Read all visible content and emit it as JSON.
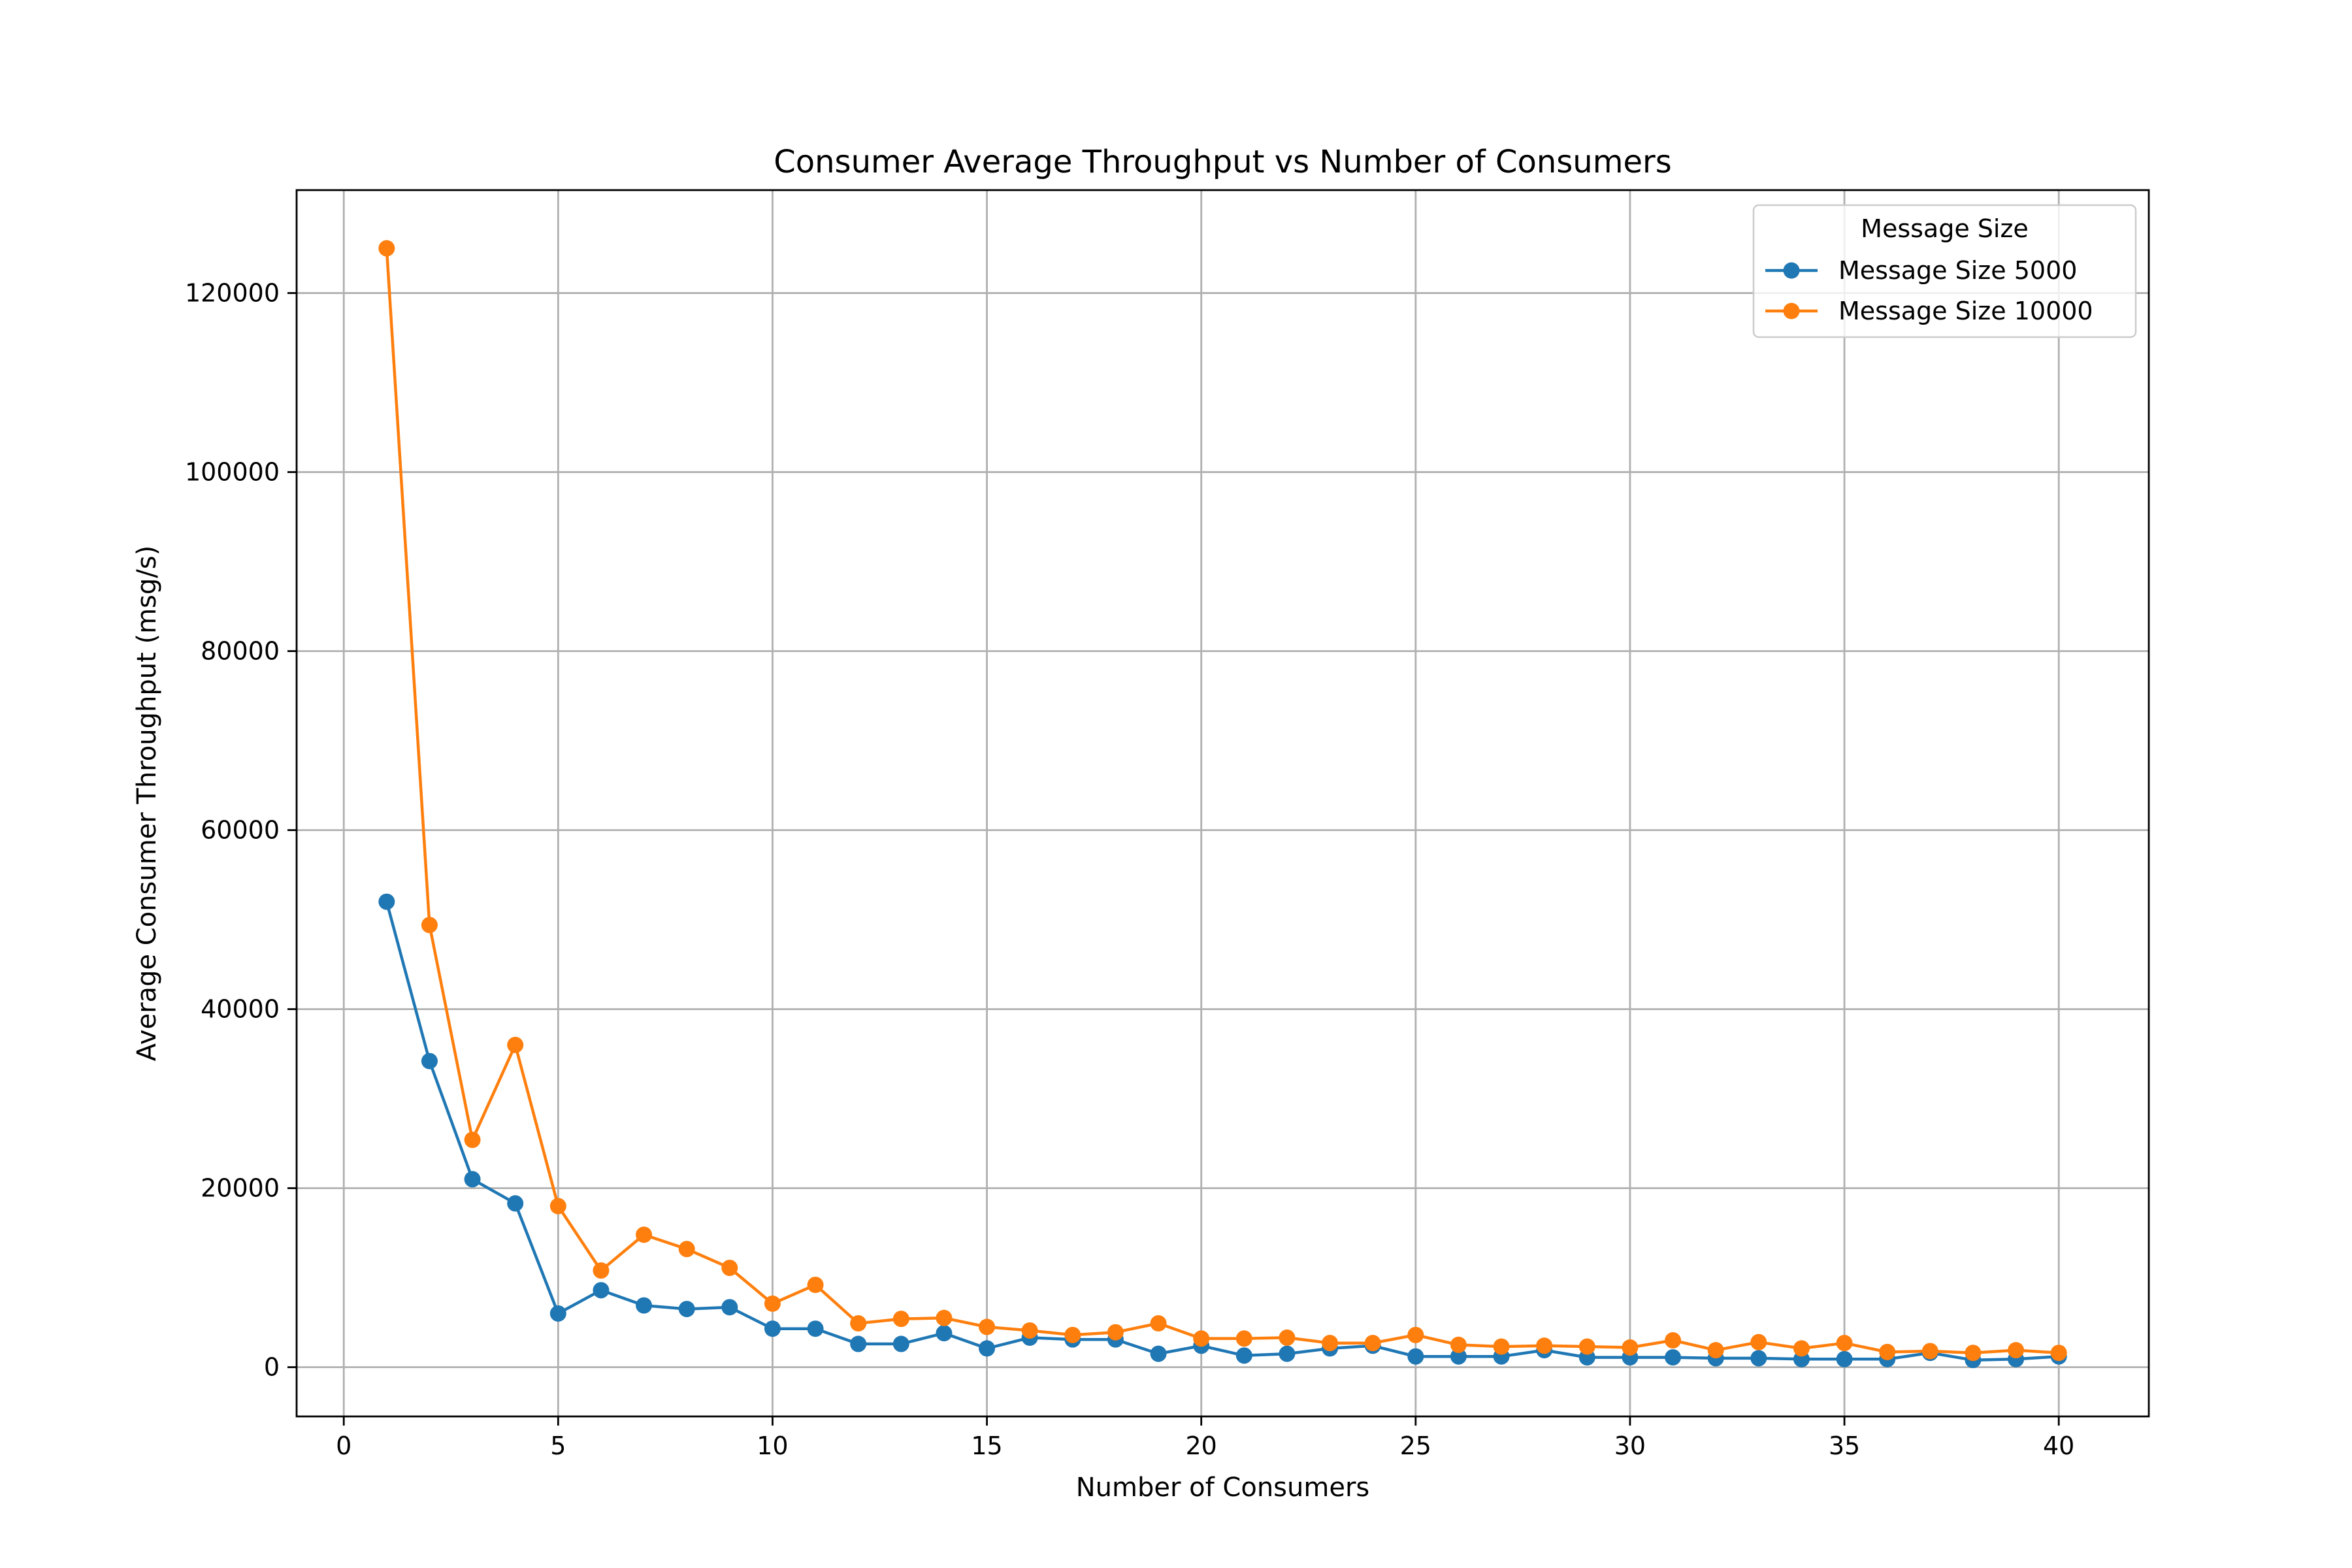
{
  "chart_data": {
    "type": "line",
    "title": "Consumer Average Throughput vs Number of Consumers",
    "xlabel": "Number of Consumers",
    "ylabel": "Average Consumer Throughput (msg/s)",
    "xlim": [
      -1.1,
      42.1
    ],
    "ylim": [
      -5500,
      131500
    ],
    "xticks": [
      0,
      5,
      10,
      15,
      20,
      25,
      30,
      35,
      40
    ],
    "yticks": [
      0,
      20000,
      40000,
      60000,
      80000,
      100000,
      120000
    ],
    "grid": true,
    "legend": {
      "title": "Message Size",
      "placement": "top-right"
    },
    "x": [
      1,
      2,
      3,
      4,
      5,
      6,
      7,
      8,
      9,
      10,
      11,
      12,
      13,
      14,
      15,
      16,
      17,
      18,
      19,
      20,
      21,
      22,
      23,
      24,
      25,
      26,
      27,
      28,
      29,
      30,
      31,
      32,
      33,
      34,
      35,
      36,
      37,
      38,
      39,
      40
    ],
    "series": [
      {
        "name": "Message Size 5000",
        "color": "#1f77b4",
        "values": [
          52000,
          34200,
          21000,
          18300,
          6000,
          8600,
          6900,
          6500,
          6700,
          4300,
          4300,
          2600,
          2600,
          3800,
          2100,
          3300,
          3100,
          3100,
          1500,
          2400,
          1300,
          1500,
          2100,
          2400,
          1200,
          1200,
          1200,
          1900,
          1100,
          1100,
          1100,
          1000,
          1000,
          900,
          900,
          900,
          1600,
          800,
          900,
          1200
        ]
      },
      {
        "name": "Message Size 10000",
        "color": "#ff7f0e",
        "values": [
          125000,
          49400,
          25400,
          36000,
          18000,
          10800,
          14800,
          13200,
          11100,
          7100,
          9200,
          4900,
          5400,
          5500,
          4500,
          4100,
          3600,
          3900,
          4900,
          3200,
          3200,
          3300,
          2700,
          2700,
          3600,
          2500,
          2300,
          2400,
          2300,
          2200,
          3000,
          1900,
          2800,
          2100,
          2700,
          1700,
          1800,
          1600,
          1900,
          1600
        ]
      }
    ]
  }
}
